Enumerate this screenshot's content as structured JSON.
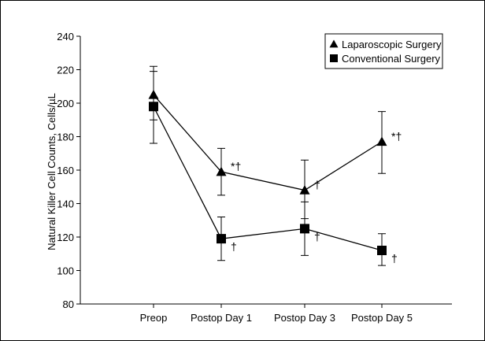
{
  "chart_data": {
    "type": "line",
    "title": "",
    "xlabel": "",
    "ylabel": "Natural Killer Cell Counts, Cells/µL",
    "categories": [
      "Preop",
      "Postop Day 1",
      "Postop Day 3",
      "Postop Day 5"
    ],
    "ylim": [
      80,
      240
    ],
    "yticks": [
      80,
      100,
      120,
      140,
      160,
      180,
      200,
      220,
      240
    ],
    "grid": false,
    "legend_position": "top-right",
    "series": [
      {
        "name": "Laparoscopic Surgery",
        "marker": "triangle",
        "values": [
          205,
          159,
          148,
          177
        ],
        "error_upper": [
          222,
          173,
          166,
          195
        ],
        "error_lower": [
          190,
          145,
          131,
          158
        ],
        "annotations": [
          "",
          "*†",
          "†",
          "*†"
        ]
      },
      {
        "name": "Conventional Surgery",
        "marker": "square",
        "values": [
          198,
          119,
          125,
          112
        ],
        "error_upper": [
          219,
          132,
          141,
          122
        ],
        "error_lower": [
          176,
          106,
          109,
          103
        ],
        "annotations": [
          "",
          "†",
          "†",
          "†"
        ]
      }
    ],
    "color": "#000000"
  }
}
